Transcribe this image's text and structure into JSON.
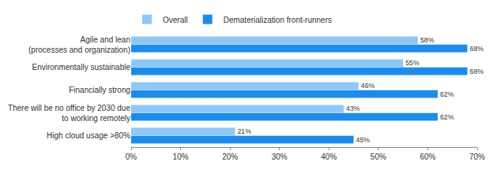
{
  "chart_data": {
    "type": "bar",
    "orientation": "horizontal",
    "categories": [
      "Agile and lean\n(processes and organization)",
      "Environmentally sustainable",
      "Financially strong",
      "There will be no office by 2030 due\nto working remotely",
      "High cloud usage >80%"
    ],
    "series": [
      {
        "name": "Overall",
        "color": "#8ec8f8",
        "values": [
          58,
          55,
          46,
          43,
          21
        ],
        "value_labels": [
          "58%",
          "55%",
          "46%",
          "43%",
          "21%"
        ]
      },
      {
        "name": "Dematerialization front-runners",
        "color": "#1a8cf0",
        "values": [
          68,
          68,
          62,
          62,
          45
        ],
        "value_labels": [
          "68%",
          "68%",
          "62%",
          "62%",
          "45%"
        ]
      }
    ],
    "xlim": [
      0,
      70
    ],
    "xticks": [
      {
        "value": 0,
        "label": "0%"
      },
      {
        "value": 10,
        "label": "10%"
      },
      {
        "value": 20,
        "label": "20%"
      },
      {
        "value": 30,
        "label": "30%"
      },
      {
        "value": 40,
        "label": "40%"
      },
      {
        "value": 50,
        "label": "50%"
      },
      {
        "value": 60,
        "label": "60%"
      },
      {
        "value": 70,
        "label": "70%"
      }
    ],
    "grid": false,
    "legend": "top-left",
    "data_labels": true
  }
}
